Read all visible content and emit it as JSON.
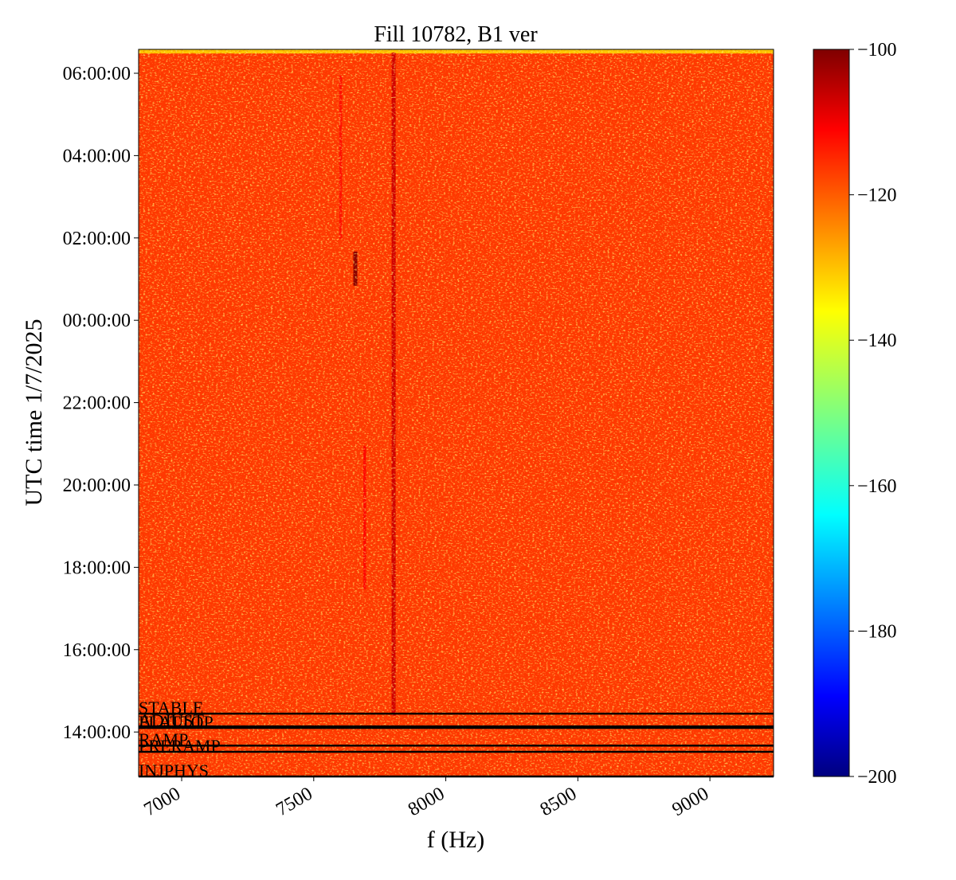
{
  "chart_data": {
    "type": "spectrogram",
    "title": "Fill 10782, B1 ver",
    "x_label": "f (Hz)",
    "y_label": "UTC time 1/7/2025",
    "xlim": [
      6837,
      9241
    ],
    "xticks": [
      7000,
      7500,
      8000,
      8500,
      9000
    ],
    "ylim": [
      12.92,
      30.58
    ],
    "yticks": [
      {
        "value": 14,
        "label": "14:00:00"
      },
      {
        "value": 16,
        "label": "16:00:00"
      },
      {
        "value": 18,
        "label": "18:00:00"
      },
      {
        "value": 20,
        "label": "20:00:00"
      },
      {
        "value": 22,
        "label": "22:00:00"
      },
      {
        "value": 24,
        "label": "00:00:00"
      },
      {
        "value": 26,
        "label": "02:00:00"
      },
      {
        "value": 28,
        "label": "04:00:00"
      },
      {
        "value": 30,
        "label": "06:00:00"
      }
    ],
    "colormap": "jet",
    "clim": [
      -200,
      -100
    ],
    "cticks": [
      {
        "value": -100,
        "label": "−100"
      },
      {
        "value": -120,
        "label": "−120"
      },
      {
        "value": -140,
        "label": "−140"
      },
      {
        "value": -160,
        "label": "−160"
      },
      {
        "value": -180,
        "label": "−180"
      },
      {
        "value": -200,
        "label": "−200"
      }
    ],
    "cells": [
      {
        "x": [
          6837,
          9241
        ],
        "y": [
          12.92,
          30.58
        ],
        "value": -118
      },
      {
        "x": [
          6837,
          9241
        ],
        "y": [
          30.48,
          30.58
        ],
        "value": -132
      },
      {
        "x": [
          7795,
          7810
        ],
        "y": [
          14.4,
          30.5
        ],
        "value": -108
      },
      {
        "x": [
          7688,
          7698
        ],
        "y": [
          17.47,
          20.95
        ],
        "value": -113
      },
      {
        "x": [
          7597,
          7607
        ],
        "y": [
          25.98,
          29.94
        ],
        "value": -114
      },
      {
        "x": [
          7650,
          7665
        ],
        "y": [
          24.84,
          25.67
        ],
        "value": -101
      }
    ],
    "event_color": "#000000",
    "events": [
      {
        "label": "STABLE",
        "y": 14.445
      },
      {
        "label": "ADJUST",
        "y": 14.135
      },
      {
        "label": "FLATTOP",
        "y": 14.1
      },
      {
        "label": "RAMP",
        "y": 13.67
      },
      {
        "label": "PRERAMP",
        "y": 13.52
      },
      {
        "label": "INJPHYS",
        "y": 12.92
      }
    ]
  }
}
